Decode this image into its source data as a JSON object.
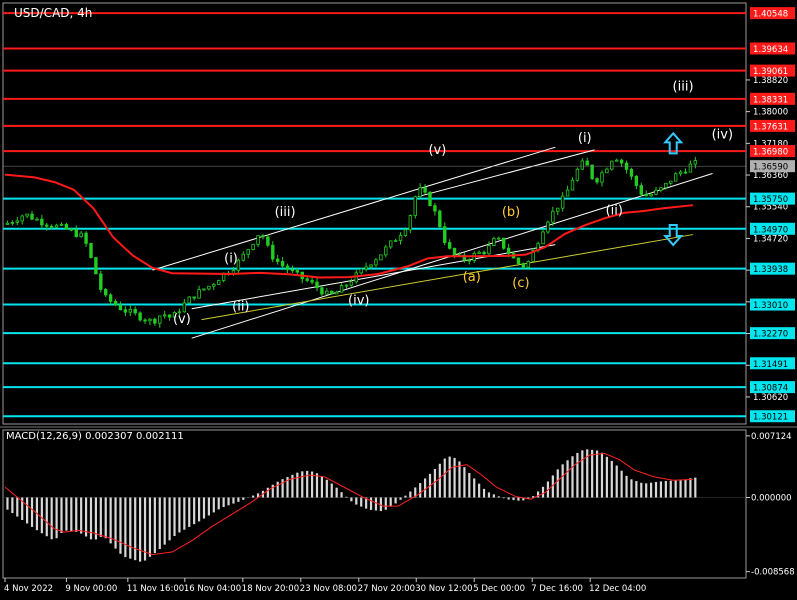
{
  "window": {
    "symbol_timeframe": "USD/CAD, 4h"
  },
  "colors": {
    "background": "#000000",
    "bull_candle": "#22cc22",
    "bear_candle": "#22cc22",
    "resistance": "#ff1a1a",
    "support": "#00e5ee",
    "moving_average": "#ff1a1a",
    "channel": "#ffffff",
    "trendline": "#cccc33",
    "wave_label_white": "#ffffff",
    "wave_label_yellow": "#ffcc33",
    "arrow": "#33ccff",
    "macd_hist": "#d8d8d8",
    "macd_signal": "#ff2222",
    "axis_text": "#ffffff"
  },
  "chart_data": [
    {
      "type": "line",
      "name": "price",
      "title": "USD/CAD, 4h",
      "x_tick_labels": [
        "4 Nov 2022",
        "9 Nov 00:00",
        "11 Nov 16:00",
        "16 Nov 04:00",
        "18 Nov 20:00",
        "23 Nov 08:00",
        "27 Nov 20:00",
        "30 Nov 12:00",
        "5 Dec 00:00",
        "7 Dec 16:00",
        "12 Dec 04:00"
      ],
      "y_tick_labels": [
        "1.38820",
        "1.38000",
        "1.37180",
        "1.36360",
        "1.35540",
        "1.34720",
        "1.33900",
        "1.33080",
        "1.32260",
        "1.31440",
        "1.30620"
      ],
      "ylim": [
        1.2992,
        1.4081
      ],
      "resistance_levels": [
        {
          "label": "1.40548",
          "value": 1.40548
        },
        {
          "label": "1.39634",
          "value": 1.39634
        },
        {
          "label": "1.39061",
          "value": 1.39061
        },
        {
          "label": "1.38331",
          "value": 1.38331
        },
        {
          "label": "1.37631",
          "value": 1.37631
        },
        {
          "label": "1.36980",
          "value": 1.3698
        }
      ],
      "support_levels": [
        {
          "label": "1.35750",
          "value": 1.3575
        },
        {
          "label": "1.34970",
          "value": 1.3497
        },
        {
          "label": "1.33938",
          "value": 1.33938
        },
        {
          "label": "1.33010",
          "value": 1.3301
        },
        {
          "label": "1.32270",
          "value": 1.3227
        },
        {
          "label": "1.31491",
          "value": 1.31491
        },
        {
          "label": "1.30874",
          "value": 1.30874
        },
        {
          "label": "1.30121",
          "value": 1.30121
        }
      ],
      "current_price": {
        "label": "1.36590",
        "value": 1.3659
      },
      "close_path": [
        [
          0,
          1.3508
        ],
        [
          4,
          1.3535
        ],
        [
          8,
          1.3512
        ],
        [
          12,
          1.3498
        ],
        [
          16,
          1.3476
        ],
        [
          18,
          1.3401
        ],
        [
          20,
          1.3322
        ],
        [
          24,
          1.3288
        ],
        [
          28,
          1.3267
        ],
        [
          30,
          1.3256
        ],
        [
          32,
          1.3278
        ],
        [
          34,
          1.3266
        ],
        [
          36,
          1.3296
        ],
        [
          38,
          1.3321
        ],
        [
          40,
          1.3338
        ],
        [
          42,
          1.3352
        ],
        [
          44,
          1.3376
        ],
        [
          46,
          1.3392
        ],
        [
          48,
          1.3418
        ],
        [
          50,
          1.3455
        ],
        [
          52,
          1.3492
        ],
        [
          54,
          1.3432
        ],
        [
          56,
          1.3406
        ],
        [
          58,
          1.3388
        ],
        [
          60,
          1.3372
        ],
        [
          62,
          1.3359
        ],
        [
          64,
          1.3341
        ],
        [
          66,
          1.3322
        ],
        [
          68,
          1.3336
        ],
        [
          70,
          1.3359
        ],
        [
          72,
          1.3381
        ],
        [
          74,
          1.3406
        ],
        [
          76,
          1.3426
        ],
        [
          78,
          1.3452
        ],
        [
          80,
          1.3478
        ],
        [
          82,
          1.3511
        ],
        [
          84,
          1.3603
        ],
        [
          86,
          1.3577
        ],
        [
          88,
          1.3526
        ],
        [
          90,
          1.3448
        ],
        [
          92,
          1.3421
        ],
        [
          94,
          1.3418
        ],
        [
          96,
          1.3432
        ],
        [
          98,
          1.3441
        ],
        [
          100,
          1.3473
        ],
        [
          102,
          1.3444
        ],
        [
          104,
          1.3411
        ],
        [
          106,
          1.3398
        ],
        [
          108,
          1.3452
        ],
        [
          110,
          1.3513
        ],
        [
          112,
          1.3548
        ],
        [
          114,
          1.3581
        ],
        [
          116,
          1.3641
        ],
        [
          118,
          1.3672
        ],
        [
          120,
          1.3618
        ],
        [
          122,
          1.3649
        ],
        [
          124,
          1.3688
        ],
        [
          126,
          1.3662
        ],
        [
          128,
          1.3619
        ],
        [
          130,
          1.3581
        ],
        [
          132,
          1.3588
        ],
        [
          134,
          1.3603
        ],
        [
          136,
          1.3631
        ],
        [
          138,
          1.3648
        ],
        [
          140,
          1.3665
        ]
      ],
      "moving_average_path": [
        [
          0,
          1.3637
        ],
        [
          6,
          1.363
        ],
        [
          10,
          1.3618
        ],
        [
          14,
          1.3598
        ],
        [
          18,
          1.355
        ],
        [
          22,
          1.3475
        ],
        [
          26,
          1.3428
        ],
        [
          30,
          1.3396
        ],
        [
          34,
          1.3382
        ],
        [
          40,
          1.3381
        ],
        [
          46,
          1.338
        ],
        [
          52,
          1.3383
        ],
        [
          58,
          1.3379
        ],
        [
          64,
          1.3371
        ],
        [
          70,
          1.3372
        ],
        [
          76,
          1.338
        ],
        [
          82,
          1.34
        ],
        [
          86,
          1.342
        ],
        [
          90,
          1.3426
        ],
        [
          96,
          1.3426
        ],
        [
          102,
          1.3427
        ],
        [
          106,
          1.343
        ],
        [
          110,
          1.345
        ],
        [
          114,
          1.3484
        ],
        [
          118,
          1.3506
        ],
        [
          122,
          1.3524
        ],
        [
          126,
          1.3538
        ],
        [
          130,
          1.3543
        ],
        [
          134,
          1.355
        ],
        [
          140,
          1.3558
        ]
      ],
      "wave_labels": [
        {
          "text": "(v)",
          "x": 36,
          "price": 1.3253,
          "color": "white"
        },
        {
          "text": "(i)",
          "x": 46,
          "price": 1.341,
          "color": "white"
        },
        {
          "text": "(ii)",
          "x": 48,
          "price": 1.3285,
          "color": "white"
        },
        {
          "text": "(iii)",
          "x": 57,
          "price": 1.353,
          "color": "white"
        },
        {
          "text": "(iv)",
          "x": 72,
          "price": 1.3301,
          "color": "white"
        },
        {
          "text": "(v)",
          "x": 88,
          "price": 1.369,
          "color": "white"
        },
        {
          "text": "(b)",
          "x": 103,
          "price": 1.353,
          "color": "yellow"
        },
        {
          "text": "(a)",
          "x": 95,
          "price": 1.3362,
          "color": "yellow"
        },
        {
          "text": "(c)",
          "x": 105,
          "price": 1.3346,
          "color": "yellow"
        },
        {
          "text": "(i)",
          "x": 118,
          "price": 1.3722,
          "color": "white"
        },
        {
          "text": "(ii)",
          "x": 124,
          "price": 1.3534,
          "color": "white"
        },
        {
          "text": "(iii)",
          "x": 138,
          "price": 1.3855,
          "color": "white"
        },
        {
          "text": "(iv)",
          "x": 146,
          "price": 1.373,
          "color": "white"
        }
      ],
      "arrows": [
        {
          "direction": "up",
          "x": 136,
          "price": 1.3718
        },
        {
          "direction": "down",
          "x": 136,
          "price": 1.3481
        }
      ]
    },
    {
      "type": "bar",
      "name": "MACD(12,26,9) 0.002307 0.002111",
      "indicator_title": "MACD(12,26,9) 0.002307 0.002111",
      "y_tick_labels": [
        "0.007124",
        "0.000000",
        "-0.008568"
      ],
      "ylim": [
        -0.0093,
        0.0078
      ],
      "histogram_path": [
        [
          0,
          -0.0012
        ],
        [
          6,
          -0.0036
        ],
        [
          10,
          -0.005
        ],
        [
          12,
          -0.0038
        ],
        [
          15,
          -0.004
        ],
        [
          18,
          -0.005
        ],
        [
          20,
          -0.0044
        ],
        [
          24,
          -0.0068
        ],
        [
          28,
          -0.0075
        ],
        [
          31,
          -0.0062
        ],
        [
          35,
          -0.0042
        ],
        [
          40,
          -0.0026
        ],
        [
          44,
          -0.0012
        ],
        [
          48,
          -0.0004
        ],
        [
          52,
          0.0006
        ],
        [
          56,
          0.002
        ],
        [
          60,
          0.003
        ],
        [
          62,
          0.0031
        ],
        [
          64,
          0.0027
        ],
        [
          67,
          0.0014
        ],
        [
          71,
          -0.0007
        ],
        [
          74,
          -0.0014
        ],
        [
          77,
          -0.0016
        ],
        [
          80,
          -0.0005
        ],
        [
          84,
          0.0014
        ],
        [
          87,
          0.003
        ],
        [
          90,
          0.0048
        ],
        [
          92,
          0.0045
        ],
        [
          95,
          0.0025
        ],
        [
          98,
          0.0007
        ],
        [
          102,
          -0.0002
        ],
        [
          105,
          -0.0004
        ],
        [
          107,
          -0.0001
        ],
        [
          110,
          0.0015
        ],
        [
          113,
          0.0036
        ],
        [
          116,
          0.005
        ],
        [
          118,
          0.0056
        ],
        [
          121,
          0.0054
        ],
        [
          124,
          0.004
        ],
        [
          127,
          0.0022
        ],
        [
          130,
          0.0016
        ],
        [
          134,
          0.0019
        ],
        [
          138,
          0.002
        ],
        [
          140,
          0.0023
        ]
      ],
      "signal_path": [
        [
          0,
          0.0012
        ],
        [
          6,
          -0.0016
        ],
        [
          10,
          -0.0036
        ],
        [
          12,
          -0.004
        ],
        [
          15,
          -0.0038
        ],
        [
          18,
          -0.0041
        ],
        [
          22,
          -0.0048
        ],
        [
          26,
          -0.0058
        ],
        [
          30,
          -0.0066
        ],
        [
          34,
          -0.0063
        ],
        [
          38,
          -0.005
        ],
        [
          42,
          -0.0034
        ],
        [
          46,
          -0.002
        ],
        [
          50,
          -0.0006
        ],
        [
          54,
          0.001
        ],
        [
          58,
          0.0021
        ],
        [
          62,
          0.0026
        ],
        [
          65,
          0.0024
        ],
        [
          69,
          0.0012
        ],
        [
          73,
          0.0
        ],
        [
          77,
          -0.001
        ],
        [
          80,
          -0.001
        ],
        [
          84,
          0.0003
        ],
        [
          88,
          0.002
        ],
        [
          91,
          0.0035
        ],
        [
          94,
          0.0038
        ],
        [
          97,
          0.0026
        ],
        [
          100,
          0.0012
        ],
        [
          104,
          0.0001
        ],
        [
          107,
          -0.0002
        ],
        [
          110,
          0.0006
        ],
        [
          113,
          0.0022
        ],
        [
          116,
          0.0038
        ],
        [
          119,
          0.0049
        ],
        [
          122,
          0.0051
        ],
        [
          125,
          0.0044
        ],
        [
          128,
          0.0032
        ],
        [
          132,
          0.0024
        ],
        [
          136,
          0.002
        ],
        [
          140,
          0.0021
        ]
      ]
    }
  ]
}
